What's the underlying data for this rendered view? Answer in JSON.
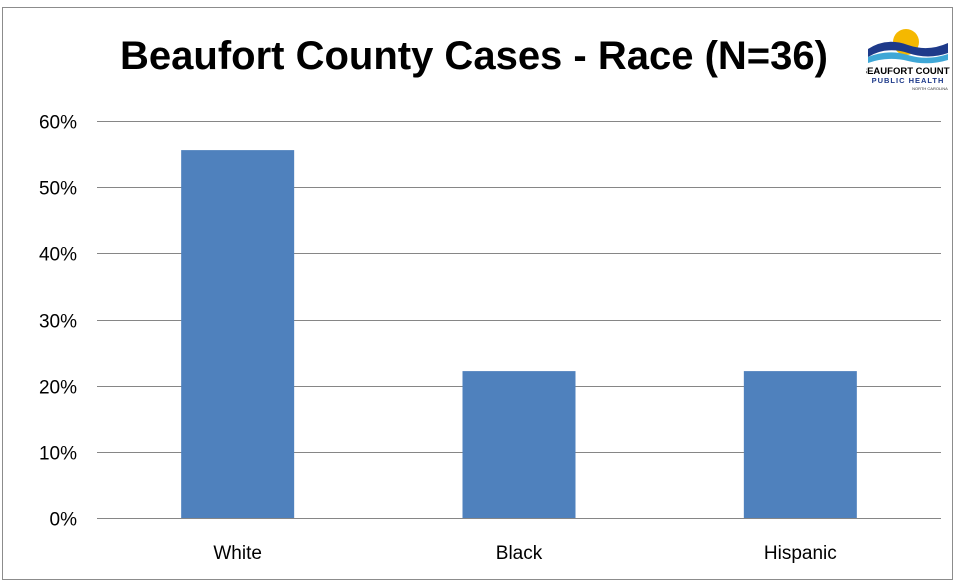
{
  "chart_data": {
    "type": "bar",
    "title": "Beaufort County Cases - Race  (N=36)",
    "categories": [
      "White",
      "Black",
      "Hispanic"
    ],
    "values": [
      55.6,
      22.2,
      22.2
    ],
    "value_format": "percent",
    "ylim": [
      0,
      60
    ],
    "yticks": [
      "0%",
      "10%",
      "20%",
      "30%",
      "40%",
      "50%",
      "60%"
    ],
    "ytick_values": [
      0,
      10,
      20,
      30,
      40,
      50,
      60
    ],
    "xlabel": "",
    "ylabel": "",
    "grid": true,
    "legend": "none",
    "bar_color": "#4F81BD",
    "grid_color": "#868686"
  },
  "logo": {
    "line1": "BEAUFORT COUNTY",
    "line2": "PUBLIC HEALTH",
    "line3": "NORTH CAROLINA",
    "colors": {
      "sun": "#F5B800",
      "wave_dark": "#1E3A8A",
      "wave_light": "#3FA7D6"
    }
  }
}
